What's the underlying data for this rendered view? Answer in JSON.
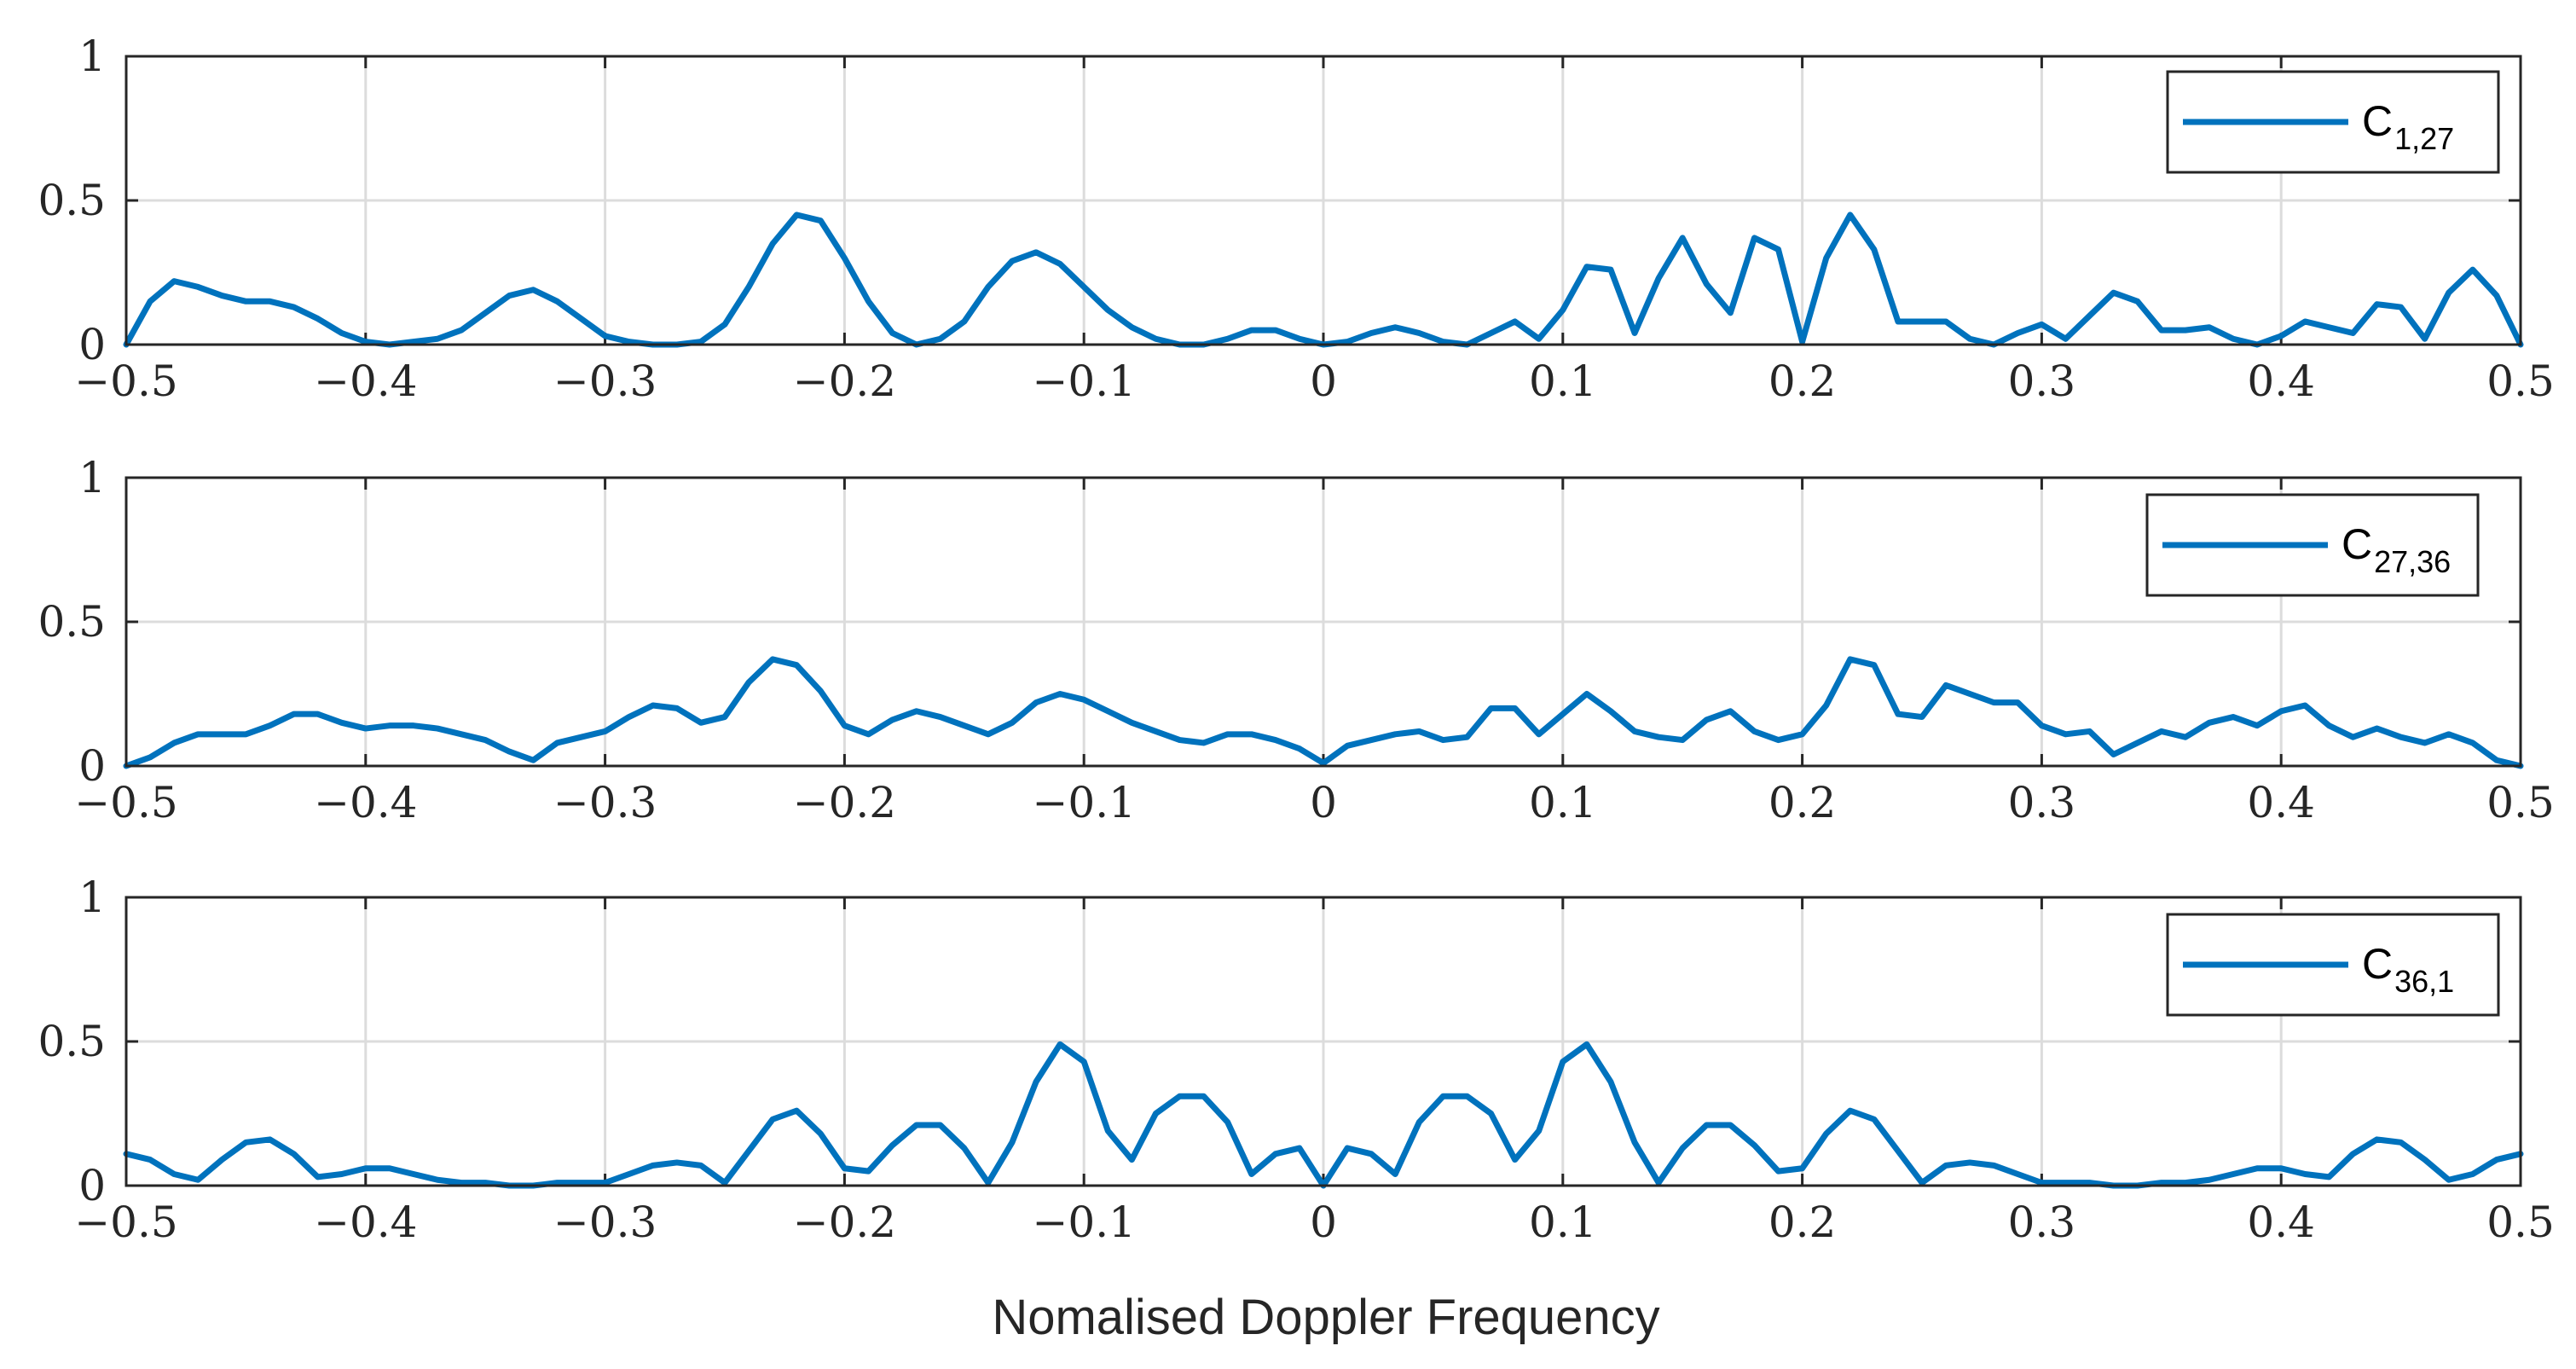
{
  "chart_data": {
    "type": "line",
    "xlabel": "Nomalised Doppler Frequency",
    "xlim": [
      -0.5,
      0.5
    ],
    "ylim": [
      0,
      1
    ],
    "x_ticks": [
      -0.5,
      -0.4,
      -0.3,
      -0.2,
      -0.1,
      0,
      0.1,
      0.2,
      0.3,
      0.4,
      0.5
    ],
    "x_tick_labels": [
      "−0.5",
      "−0.4",
      "−0.3",
      "−0.2",
      "−0.1",
      "0",
      "0.1",
      "0.2",
      "0.3",
      "0.4",
      "0.5"
    ],
    "y_ticks": [
      0,
      0.5,
      1
    ],
    "y_tick_labels": [
      "0",
      "0.5",
      "1"
    ],
    "grid": true,
    "line_color": "#0072BD",
    "x_start": -0.5,
    "x_step": 0.01,
    "panels": [
      {
        "legend_main": "C",
        "legend_sub": "1,27",
        "legend_position": "top-right",
        "values": [
          0.0,
          0.15,
          0.22,
          0.2,
          0.17,
          0.15,
          0.15,
          0.13,
          0.09,
          0.04,
          0.01,
          0.0,
          0.01,
          0.02,
          0.05,
          0.11,
          0.17,
          0.19,
          0.15,
          0.09,
          0.03,
          0.01,
          0.0,
          0.0,
          0.01,
          0.07,
          0.2,
          0.35,
          0.45,
          0.43,
          0.3,
          0.15,
          0.04,
          0.0,
          0.02,
          0.08,
          0.2,
          0.29,
          0.32,
          0.28,
          0.2,
          0.12,
          0.06,
          0.02,
          0.0,
          0.0,
          0.02,
          0.05,
          0.05,
          0.02,
          0.0,
          0.01,
          0.04,
          0.06,
          0.04,
          0.01,
          0.0,
          0.04,
          0.08,
          0.02,
          0.12,
          0.27,
          0.26,
          0.04,
          0.23,
          0.37,
          0.21,
          0.11,
          0.37,
          0.33,
          0.01,
          0.3,
          0.45,
          0.33,
          0.08,
          0.08,
          0.08,
          0.02,
          0.0,
          0.04,
          0.07,
          0.02,
          0.1,
          0.18,
          0.15,
          0.05,
          0.05,
          0.06,
          0.02,
          0.0,
          0.03,
          0.08,
          0.06,
          0.04,
          0.14,
          0.13,
          0.02,
          0.18,
          0.26,
          0.17,
          0.0
        ]
      },
      {
        "legend_main": "C",
        "legend_sub": "27,36",
        "legend_position": "top-right",
        "values": [
          0.0,
          0.03,
          0.08,
          0.11,
          0.11,
          0.11,
          0.14,
          0.18,
          0.18,
          0.15,
          0.13,
          0.14,
          0.14,
          0.13,
          0.11,
          0.09,
          0.05,
          0.02,
          0.08,
          0.1,
          0.12,
          0.17,
          0.21,
          0.2,
          0.15,
          0.17,
          0.29,
          0.37,
          0.35,
          0.26,
          0.14,
          0.11,
          0.16,
          0.19,
          0.17,
          0.14,
          0.11,
          0.15,
          0.22,
          0.25,
          0.23,
          0.19,
          0.15,
          0.12,
          0.09,
          0.08,
          0.11,
          0.11,
          0.09,
          0.06,
          0.01,
          0.07,
          0.09,
          0.11,
          0.12,
          0.09,
          0.1,
          0.2,
          0.2,
          0.11,
          0.18,
          0.25,
          0.19,
          0.12,
          0.1,
          0.09,
          0.16,
          0.19,
          0.12,
          0.09,
          0.11,
          0.21,
          0.37,
          0.35,
          0.18,
          0.17,
          0.28,
          0.25,
          0.22,
          0.22,
          0.14,
          0.11,
          0.12,
          0.04,
          0.08,
          0.12,
          0.1,
          0.15,
          0.17,
          0.14,
          0.19,
          0.21,
          0.14,
          0.1,
          0.13,
          0.1,
          0.08,
          0.11,
          0.08,
          0.02,
          0.0
        ]
      },
      {
        "legend_main": "C",
        "legend_sub": "36,1",
        "legend_position": "top-right",
        "values": [
          0.11,
          0.09,
          0.04,
          0.02,
          0.09,
          0.15,
          0.16,
          0.11,
          0.03,
          0.04,
          0.06,
          0.06,
          0.04,
          0.02,
          0.01,
          0.01,
          0.0,
          0.0,
          0.01,
          0.01,
          0.01,
          0.04,
          0.07,
          0.08,
          0.07,
          0.01,
          0.12,
          0.23,
          0.26,
          0.18,
          0.06,
          0.05,
          0.14,
          0.21,
          0.21,
          0.13,
          0.01,
          0.15,
          0.36,
          0.49,
          0.43,
          0.19,
          0.09,
          0.25,
          0.31,
          0.31,
          0.22,
          0.04,
          0.11,
          0.13,
          0.0,
          0.13,
          0.11,
          0.04,
          0.22,
          0.31,
          0.31,
          0.25,
          0.09,
          0.19,
          0.43,
          0.49,
          0.36,
          0.15,
          0.01,
          0.13,
          0.21,
          0.21,
          0.14,
          0.05,
          0.06,
          0.18,
          0.26,
          0.23,
          0.12,
          0.01,
          0.07,
          0.08,
          0.07,
          0.04,
          0.01,
          0.01,
          0.01,
          0.0,
          0.0,
          0.01,
          0.01,
          0.02,
          0.04,
          0.06,
          0.06,
          0.04,
          0.03,
          0.11,
          0.16,
          0.15,
          0.09,
          0.02,
          0.04,
          0.09,
          0.11
        ]
      }
    ]
  }
}
